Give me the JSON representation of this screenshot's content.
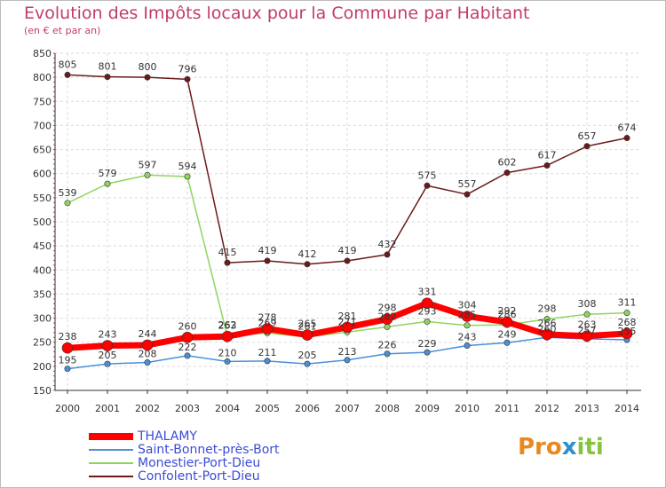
{
  "title": "Evolution des Impôts locaux pour la Commune par Habitant",
  "subtitle": "(en € et par an)",
  "logo": {
    "p1": "Pro",
    "p2": "x",
    "p3": "iti"
  },
  "colors": {
    "THALAMY": "#ff0000",
    "Saint-Bonnet-près-Bort": "#4a90d9",
    "Monestier-Port-Dieu": "#8fd55c",
    "Confolent-Port-Dieu": "#6b1a1a"
  },
  "chart_data": {
    "type": "line",
    "title": "Evolution des Impôts locaux pour la Commune par Habitant",
    "ylabel": "(en € et par an)",
    "xlabel": "",
    "ylim": [
      150,
      850
    ],
    "yticks": [
      150,
      200,
      250,
      300,
      350,
      400,
      450,
      500,
      550,
      600,
      650,
      700,
      750,
      800,
      850
    ],
    "x": [
      2000,
      2001,
      2002,
      2003,
      2004,
      2005,
      2006,
      2007,
      2008,
      2009,
      2010,
      2011,
      2012,
      2013,
      2014
    ],
    "series": [
      {
        "name": "THALAMY",
        "values": [
          238,
          243,
          244,
          260,
          262,
          278,
          265,
          281,
          298,
          331,
          304,
          292,
          266,
          263,
          268
        ]
      },
      {
        "name": "Saint-Bonnet-près-Bort",
        "values": [
          195,
          205,
          208,
          222,
          210,
          211,
          205,
          213,
          226,
          229,
          243,
          249,
          260,
          257,
          255
        ]
      },
      {
        "name": "Monestier-Port-Dieu",
        "values": [
          539,
          579,
          597,
          594,
          263,
          269,
          261,
          271,
          282,
          293,
          285,
          286,
          298,
          308,
          311
        ]
      },
      {
        "name": "Confolent-Port-Dieu",
        "values": [
          805,
          801,
          800,
          796,
          415,
          419,
          412,
          419,
          432,
          575,
          557,
          602,
          617,
          657,
          674
        ]
      }
    ],
    "legend": [
      "THALAMY",
      "Saint-Bonnet-près-Bort",
      "Monestier-Port-Dieu",
      "Confolent-Port-Dieu"
    ],
    "grid": true,
    "legend_position": "bottom-left"
  }
}
